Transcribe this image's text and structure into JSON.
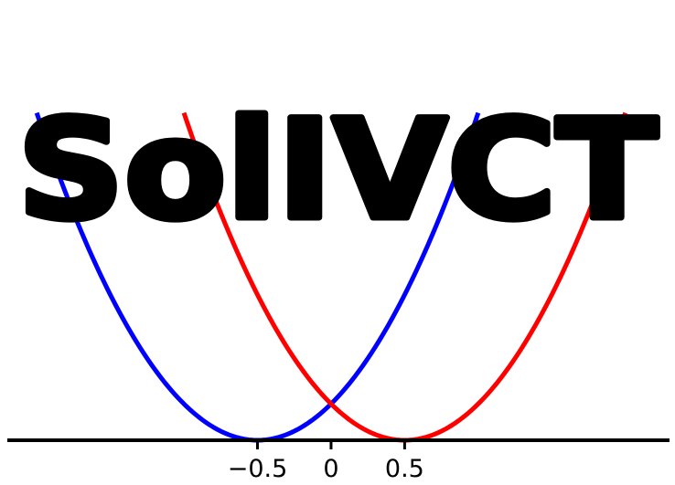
{
  "logo": {
    "text": "SolIVCT",
    "color": "#000000"
  },
  "chart_data": {
    "type": "line",
    "title": "",
    "xlabel": "",
    "ylabel": "",
    "xlim": [
      -2.2,
      2.3
    ],
    "ylim": [
      0,
      2.95
    ],
    "grid": false,
    "legend": "none",
    "x_axis_only": true,
    "xticks": [
      -0.5,
      0,
      0.5
    ],
    "xtick_labels": [
      "−0.5",
      "0",
      "0.5"
    ],
    "series": [
      {
        "color": "#0000ff",
        "formula": "y = (x + 0.5)^2",
        "x": [
          -2.0,
          -1.75,
          -1.5,
          -1.25,
          -1.0,
          -0.75,
          -0.5,
          -0.25,
          0.0,
          0.25,
          0.5,
          0.75,
          1.0
        ],
        "values": [
          2.25,
          1.5625,
          1.0,
          0.5625,
          0.25,
          0.0625,
          0.0,
          0.0625,
          0.25,
          0.5625,
          1.0,
          1.5625,
          2.25
        ]
      },
      {
        "color": "#ff0000",
        "formula": "y = (x - 0.5)^2",
        "x": [
          -1.0,
          -0.75,
          -0.5,
          -0.25,
          0.0,
          0.25,
          0.5,
          0.75,
          1.0,
          1.25,
          1.5,
          1.75,
          2.0
        ],
        "values": [
          2.25,
          1.5625,
          1.0,
          0.5625,
          0.25,
          0.0625,
          0.0,
          0.0625,
          0.25,
          0.5625,
          1.0,
          1.5625,
          2.25
        ]
      }
    ]
  }
}
